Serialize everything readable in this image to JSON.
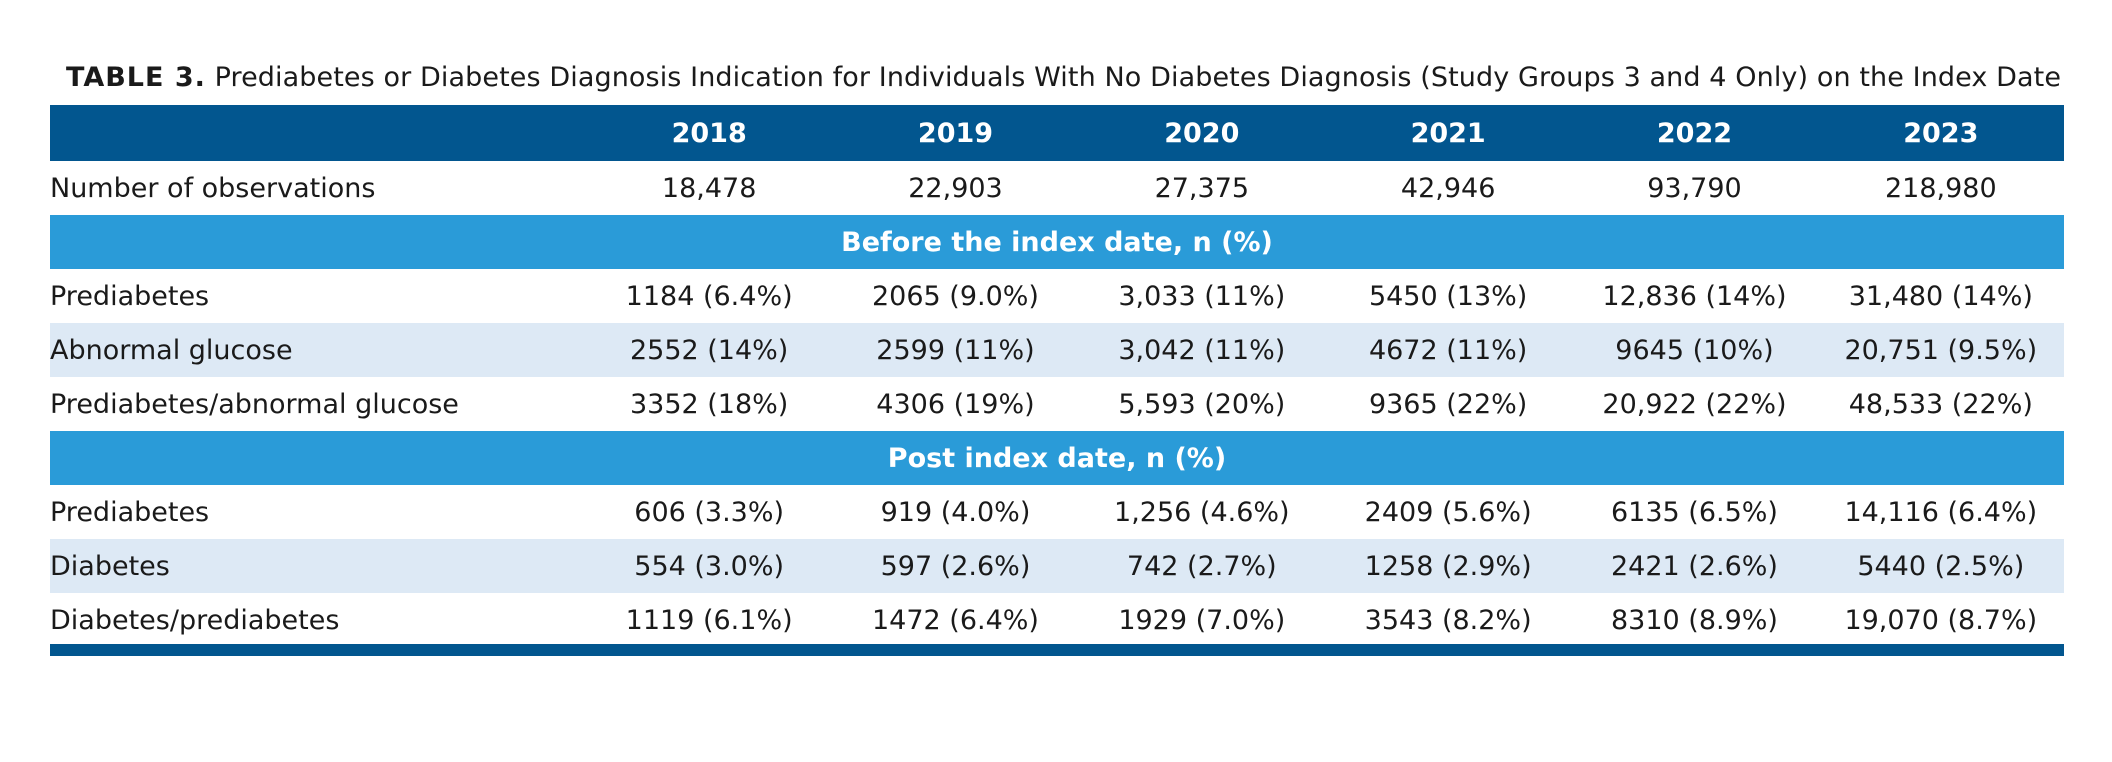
{
  "caption": {
    "label": "TABLE 3.",
    "text": "Prediabetes or Diabetes Diagnosis Indication for Individuals With No Diabetes Diagnosis (Study Groups 3 and 4 Only) on the Index Date"
  },
  "table": {
    "corner": "",
    "years": [
      "2018",
      "2019",
      "2020",
      "2021",
      "2022",
      "2023"
    ],
    "observations": {
      "label": "Number of observations",
      "values": [
        "18,478",
        "22,903",
        "27,375",
        "42,946",
        "93,790",
        "218,980"
      ]
    },
    "before_section": {
      "title": "Before the index date, n (%)",
      "rows": [
        {
          "label": "Prediabetes",
          "values": [
            "1184 (6.4%)",
            "2065 (9.0%)",
            "3,033 (11%)",
            "5450 (13%)",
            "12,836 (14%)",
            "31,480 (14%)"
          ]
        },
        {
          "label": "Abnormal glucose",
          "values": [
            "2552 (14%)",
            "2599 (11%)",
            "3,042 (11%)",
            "4672 (11%)",
            "9645 (10%)",
            "20,751 (9.5%)"
          ]
        },
        {
          "label": "Prediabetes/abnormal glucose",
          "values": [
            "3352 (18%)",
            "4306 (19%)",
            "5,593 (20%)",
            "9365 (22%)",
            "20,922 (22%)",
            "48,533 (22%)"
          ]
        }
      ]
    },
    "post_section": {
      "title": "Post index date, n (%)",
      "rows": [
        {
          "label": "Prediabetes",
          "values": [
            "606 (3.3%)",
            "919 (4.0%)",
            "1,256 (4.6%)",
            "2409 (5.6%)",
            "6135 (6.5%)",
            "14,116 (6.4%)"
          ]
        },
        {
          "label": "Diabetes",
          "values": [
            "554 (3.0%)",
            "597 (2.6%)",
            "742 (2.7%)",
            "1258 (2.9%)",
            "2421 (2.6%)",
            "5440 (2.5%)"
          ]
        },
        {
          "label": "Diabetes/prediabetes",
          "values": [
            "1119 (6.1%)",
            "1472 (6.4%)",
            "1929 (7.0%)",
            "3543 (8.2%)",
            "8310 (8.9%)",
            "19,070 (8.7%)"
          ]
        }
      ]
    }
  },
  "colors": {
    "header_dark_blue": "#02568f",
    "section_blue": "#2a9bd8",
    "shaded_row": "#dde9f5"
  }
}
